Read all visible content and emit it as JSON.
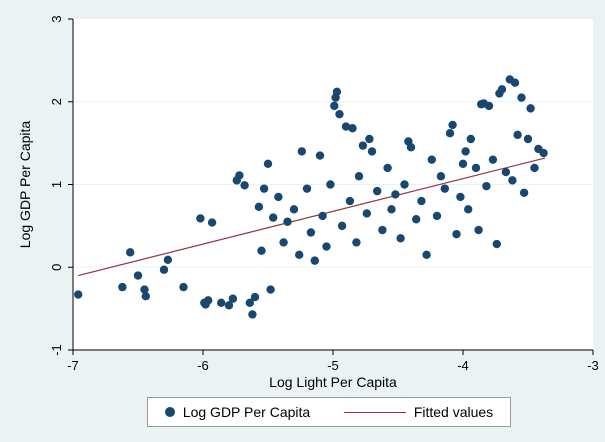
{
  "chart_data": {
    "type": "scatter",
    "xlabel": "Log Light Per Capita",
    "ylabel": "Log GDP Per Capita",
    "xlim": [
      -7,
      -3
    ],
    "ylim": [
      -1,
      3
    ],
    "xticks": [
      "-7",
      "-6",
      "-5",
      "-4",
      "-3"
    ],
    "yticks": [
      "-1",
      "0",
      "1",
      "2",
      "3"
    ],
    "grid": "horizontal",
    "legend_position": "bottom",
    "colors": {
      "points": "#1a476f",
      "fit": "#90353b",
      "plot_bg": "#ffffff",
      "outer_bg": "#eaf2f3"
    },
    "series": [
      {
        "name": "Log GDP Per Capita",
        "kind": "scatter",
        "points": [
          [
            -6.96,
            -0.33
          ],
          [
            -6.62,
            -0.24
          ],
          [
            -6.56,
            0.18
          ],
          [
            -6.5,
            -0.1
          ],
          [
            -6.45,
            -0.27
          ],
          [
            -6.44,
            -0.35
          ],
          [
            -6.3,
            -0.03
          ],
          [
            -6.27,
            0.09
          ],
          [
            -6.15,
            -0.24
          ],
          [
            -6.02,
            0.59
          ],
          [
            -5.99,
            -0.43
          ],
          [
            -5.98,
            -0.45
          ],
          [
            -5.96,
            -0.4
          ],
          [
            -5.93,
            0.54
          ],
          [
            -5.86,
            -0.43
          ],
          [
            -5.8,
            -0.46
          ],
          [
            -5.77,
            -0.38
          ],
          [
            -5.74,
            1.05
          ],
          [
            -5.72,
            1.11
          ],
          [
            -5.68,
            0.99
          ],
          [
            -5.64,
            -0.43
          ],
          [
            -5.62,
            -0.57
          ],
          [
            -5.6,
            -0.36
          ],
          [
            -5.57,
            0.73
          ],
          [
            -5.55,
            0.2
          ],
          [
            -5.53,
            0.95
          ],
          [
            -5.5,
            1.25
          ],
          [
            -5.48,
            -0.27
          ],
          [
            -5.46,
            0.6
          ],
          [
            -5.42,
            0.85
          ],
          [
            -5.38,
            0.3
          ],
          [
            -5.35,
            0.55
          ],
          [
            -5.3,
            0.7
          ],
          [
            -5.26,
            0.15
          ],
          [
            -5.24,
            1.4
          ],
          [
            -5.2,
            0.95
          ],
          [
            -5.17,
            0.42
          ],
          [
            -5.14,
            0.08
          ],
          [
            -5.1,
            1.35
          ],
          [
            -5.08,
            0.62
          ],
          [
            -5.05,
            0.25
          ],
          [
            -5.02,
            1.0
          ],
          [
            -4.99,
            1.95
          ],
          [
            -4.98,
            2.05
          ],
          [
            -4.97,
            2.12
          ],
          [
            -4.95,
            1.85
          ],
          [
            -4.93,
            0.5
          ],
          [
            -4.9,
            1.7
          ],
          [
            -4.87,
            0.8
          ],
          [
            -4.85,
            1.68
          ],
          [
            -4.82,
            0.3
          ],
          [
            -4.8,
            1.1
          ],
          [
            -4.77,
            1.47
          ],
          [
            -4.74,
            0.65
          ],
          [
            -4.72,
            1.55
          ],
          [
            -4.7,
            1.4
          ],
          [
            -4.66,
            0.92
          ],
          [
            -4.62,
            0.45
          ],
          [
            -4.58,
            1.2
          ],
          [
            -4.55,
            0.7
          ],
          [
            -4.52,
            0.88
          ],
          [
            -4.48,
            0.35
          ],
          [
            -4.45,
            1.0
          ],
          [
            -4.42,
            1.52
          ],
          [
            -4.4,
            1.45
          ],
          [
            -4.36,
            0.58
          ],
          [
            -4.32,
            0.8
          ],
          [
            -4.28,
            0.15
          ],
          [
            -4.24,
            1.3
          ],
          [
            -4.2,
            0.62
          ],
          [
            -4.17,
            1.1
          ],
          [
            -4.14,
            0.95
          ],
          [
            -4.1,
            1.62
          ],
          [
            -4.08,
            1.72
          ],
          [
            -4.05,
            0.4
          ],
          [
            -4.02,
            0.85
          ],
          [
            -4.0,
            1.25
          ],
          [
            -3.98,
            1.4
          ],
          [
            -3.96,
            0.7
          ],
          [
            -3.94,
            1.55
          ],
          [
            -3.9,
            1.2
          ],
          [
            -3.88,
            0.45
          ],
          [
            -3.86,
            1.97
          ],
          [
            -3.84,
            1.98
          ],
          [
            -3.82,
            0.98
          ],
          [
            -3.8,
            1.95
          ],
          [
            -3.77,
            1.3
          ],
          [
            -3.74,
            0.28
          ],
          [
            -3.72,
            2.1
          ],
          [
            -3.7,
            2.15
          ],
          [
            -3.67,
            1.15
          ],
          [
            -3.64,
            2.27
          ],
          [
            -3.62,
            1.05
          ],
          [
            -3.6,
            2.23
          ],
          [
            -3.58,
            1.6
          ],
          [
            -3.55,
            2.05
          ],
          [
            -3.53,
            0.9
          ],
          [
            -3.5,
            1.55
          ],
          [
            -3.48,
            1.92
          ],
          [
            -3.45,
            1.2
          ],
          [
            -3.42,
            1.43
          ],
          [
            -3.38,
            1.38
          ]
        ]
      },
      {
        "name": "Fitted values",
        "kind": "line",
        "points": [
          [
            -6.96,
            -0.1
          ],
          [
            -3.37,
            1.32
          ]
        ]
      }
    ]
  },
  "legend": {
    "entries": [
      {
        "label": "Log GDP Per Capita",
        "marker": "dot",
        "color": "#1a476f"
      },
      {
        "label": "Fitted values",
        "marker": "line",
        "color": "#90353b"
      }
    ]
  }
}
